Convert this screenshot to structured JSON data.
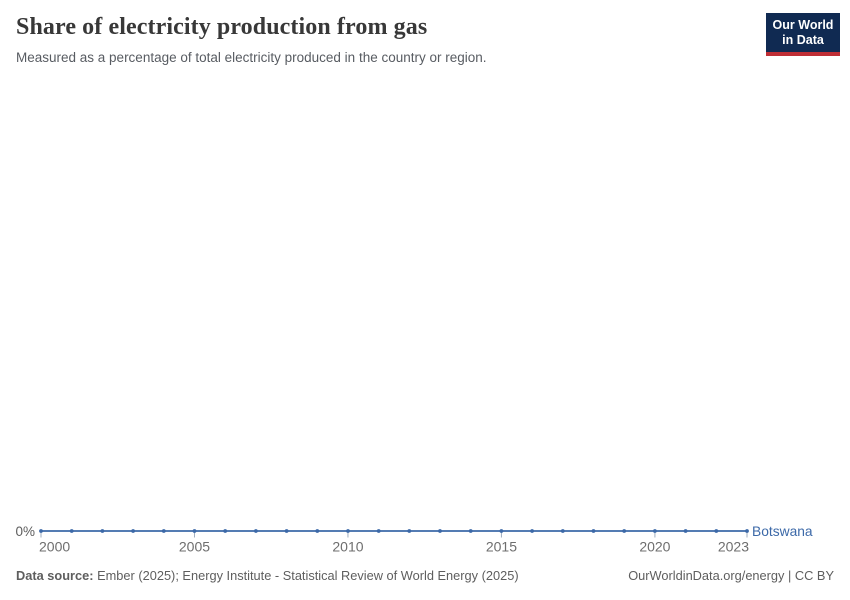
{
  "header": {
    "title": "Share of electricity production from gas",
    "subtitle": "Measured as a percentage of total electricity produced in the country or region."
  },
  "logo": {
    "line1": "Our World",
    "line2": "in Data",
    "bg_color": "#102a52",
    "stripe_color": "#bf2e35"
  },
  "chart_data": {
    "type": "line",
    "title": "Share of electricity production from gas",
    "subtitle": "Measured as a percentage of total electricity produced in the country or region.",
    "x": [
      2000,
      2001,
      2002,
      2003,
      2004,
      2005,
      2006,
      2007,
      2008,
      2009,
      2010,
      2011,
      2012,
      2013,
      2014,
      2015,
      2016,
      2017,
      2018,
      2019,
      2020,
      2021,
      2022,
      2023
    ],
    "series": [
      {
        "name": "Botswana",
        "color": "#3c69a8",
        "values": [
          0,
          0,
          0,
          0,
          0,
          0,
          0,
          0,
          0,
          0,
          0,
          0,
          0,
          0,
          0,
          0,
          0,
          0,
          0,
          0,
          0,
          0,
          0,
          0
        ]
      }
    ],
    "x_ticks": [
      2000,
      2005,
      2010,
      2015,
      2020,
      2023
    ],
    "y_tick_labels": [
      "0%"
    ],
    "xlim": [
      2000,
      2023
    ],
    "ylim": [
      0,
      0
    ],
    "unit": "%",
    "grid": false,
    "legend_position": "right-of-line"
  },
  "footer": {
    "source_label": "Data source:",
    "source_text": " Ember (2025); Energy Institute - Statistical Review of World Energy (2025)",
    "right_text": "OurWorldinData.org/energy | CC BY"
  }
}
